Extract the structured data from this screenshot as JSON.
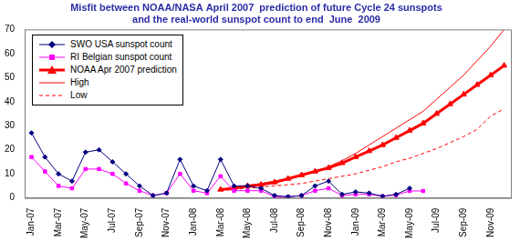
{
  "chart_data": {
    "type": "line",
    "title": [
      "Misfit between NOAA/NASA April 2007  prediction of future Cycle 24 sunspots",
      "and the real-world sunspot count to end  June  2009"
    ],
    "categories": [
      "Jan-07",
      null,
      "Mar-07",
      null,
      "May-07",
      null,
      "Jul-07",
      null,
      "Sep-07",
      null,
      "Nov-07",
      null,
      "Jan-08",
      null,
      "Mar-08",
      null,
      "May-08",
      null,
      "Jul-08",
      null,
      "Sep-08",
      null,
      "Nov-08",
      null,
      "Jan-09",
      null,
      "Mar-09",
      null,
      "May-09",
      null,
      "Jul-09",
      null,
      "Sep-09",
      null,
      "Nov-09",
      null
    ],
    "series": [
      {
        "name": "SWO USA sunspot count",
        "color": "#000080",
        "marker": "diamond",
        "line_style": "solid",
        "values": [
          27,
          17,
          10,
          7,
          19,
          20,
          15,
          10,
          5,
          1,
          2,
          16,
          5,
          3,
          16,
          5,
          5,
          4,
          1,
          0.5,
          1,
          5,
          7,
          1.5,
          2.5,
          2,
          0.7,
          1.5,
          4,
          null,
          null,
          null,
          null,
          null,
          null,
          null
        ]
      },
      {
        "name": "RI Belgian sunspot count",
        "color": "#ff00ff",
        "marker": "square",
        "line_style": "solid",
        "values": [
          17,
          11,
          5,
          4,
          12,
          12,
          10,
          6,
          3,
          1,
          2,
          10,
          3,
          2,
          9,
          3,
          3,
          3,
          0.5,
          0.5,
          1,
          3,
          4,
          1,
          1.5,
          1.5,
          0.7,
          1.2,
          2.9,
          2.9,
          null,
          null,
          null,
          null,
          null,
          null
        ]
      },
      {
        "name": "NOAA Apr 2007 prediction",
        "color": "#ff0000",
        "marker": "triangle",
        "line_style": "solid",
        "values": [
          null,
          null,
          null,
          null,
          null,
          null,
          null,
          null,
          null,
          null,
          null,
          null,
          null,
          null,
          3.5,
          4,
          5,
          5.5,
          6.5,
          8,
          9.5,
          11,
          12.5,
          14.5,
          17,
          19.5,
          22,
          25,
          28,
          31,
          35,
          39,
          43,
          47,
          51,
          55
        ]
      },
      {
        "name": "High",
        "color": "#ff0000",
        "marker": "none",
        "line_style": "solid",
        "values": [
          null,
          null,
          null,
          null,
          null,
          null,
          null,
          null,
          null,
          null,
          null,
          null,
          null,
          null,
          3.5,
          4.5,
          5,
          6,
          7,
          8,
          9.5,
          11,
          13,
          15.5,
          18.5,
          22,
          25.5,
          29,
          32.5,
          36,
          41,
          46,
          51,
          57,
          63,
          70
        ]
      },
      {
        "name": "Low",
        "color": "#ff0000",
        "marker": "none",
        "line_style": "dashed",
        "values": [
          null,
          null,
          null,
          null,
          null,
          null,
          null,
          null,
          null,
          null,
          null,
          null,
          null,
          null,
          3,
          3.5,
          4,
          4.5,
          5,
          5.5,
          6,
          7,
          8,
          9,
          10,
          11.5,
          13,
          15,
          16.5,
          18.5,
          20.5,
          23,
          25.5,
          28.5,
          34,
          37
        ]
      }
    ],
    "ylim": [
      0,
      70
    ],
    "yticks": [
      0,
      10,
      20,
      30,
      40,
      50,
      60,
      70
    ],
    "grid": false,
    "legend": "top-left"
  }
}
